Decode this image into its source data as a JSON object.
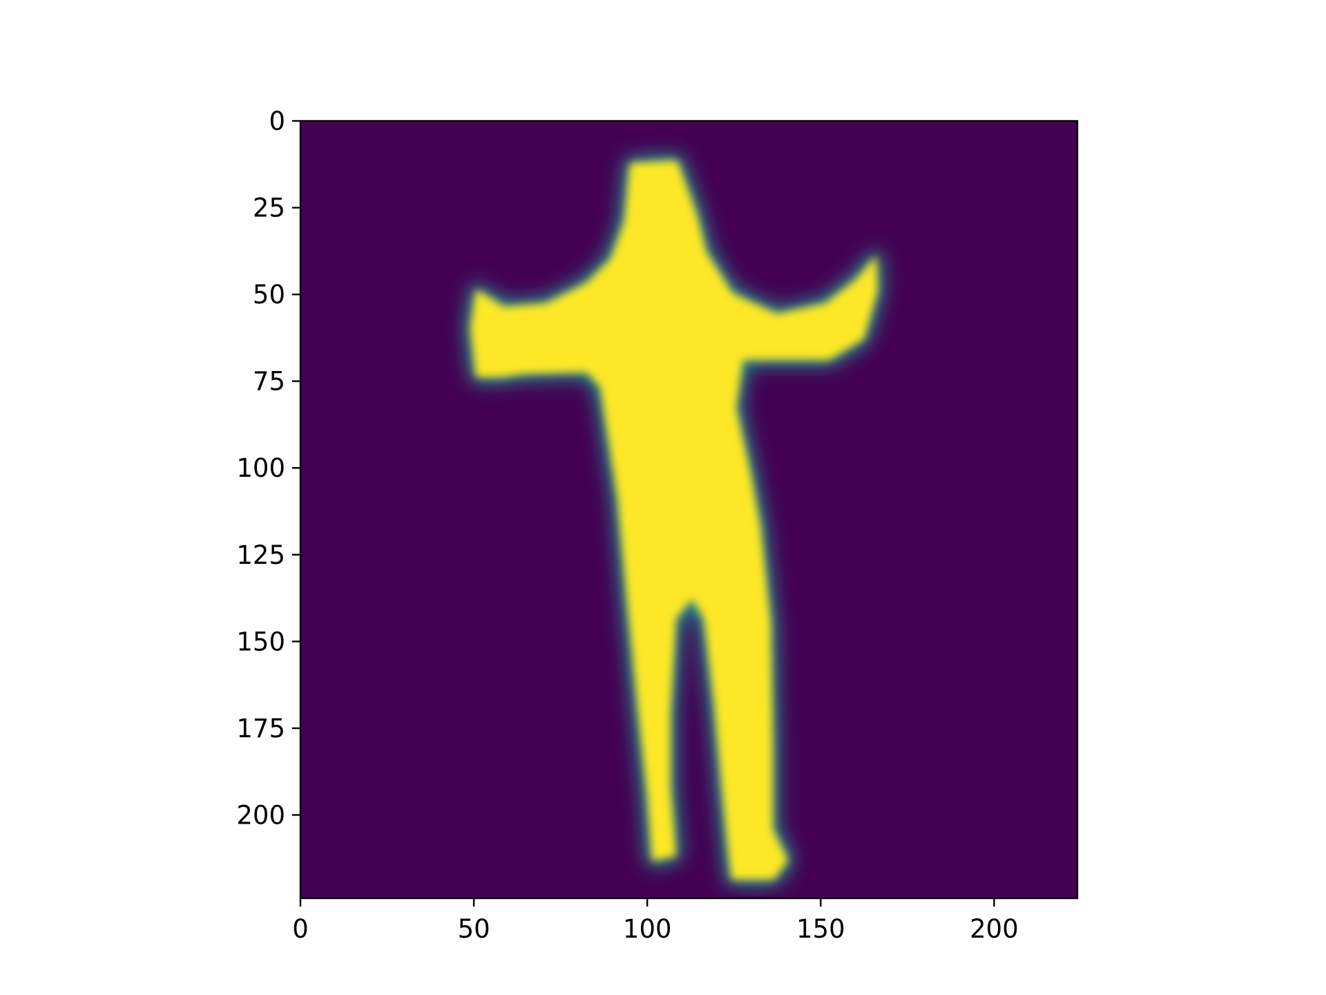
{
  "chart_data": {
    "type": "heatmap",
    "title": "",
    "xlabel": "",
    "ylabel": "",
    "colormap": "viridis",
    "colors": {
      "background": "#440154",
      "mid": "#21918c",
      "high": "#fde725"
    },
    "image_width": 224,
    "image_height": 224,
    "xlim": [
      0,
      224
    ],
    "ylim": [
      224,
      0
    ],
    "x_ticks": [
      0,
      50,
      100,
      150,
      200
    ],
    "y_ticks": [
      0,
      25,
      50,
      75,
      100,
      125,
      150,
      175,
      200
    ],
    "x_tick_labels": [
      "0",
      "50",
      "100",
      "150",
      "200"
    ],
    "y_tick_labels": [
      "0",
      "25",
      "50",
      "75",
      "100",
      "125",
      "150",
      "175",
      "200"
    ],
    "grid": false,
    "legend": "none",
    "content": "standing human silhouette with outstretched arms, high values (yellow) on a low-value (purple) background"
  }
}
